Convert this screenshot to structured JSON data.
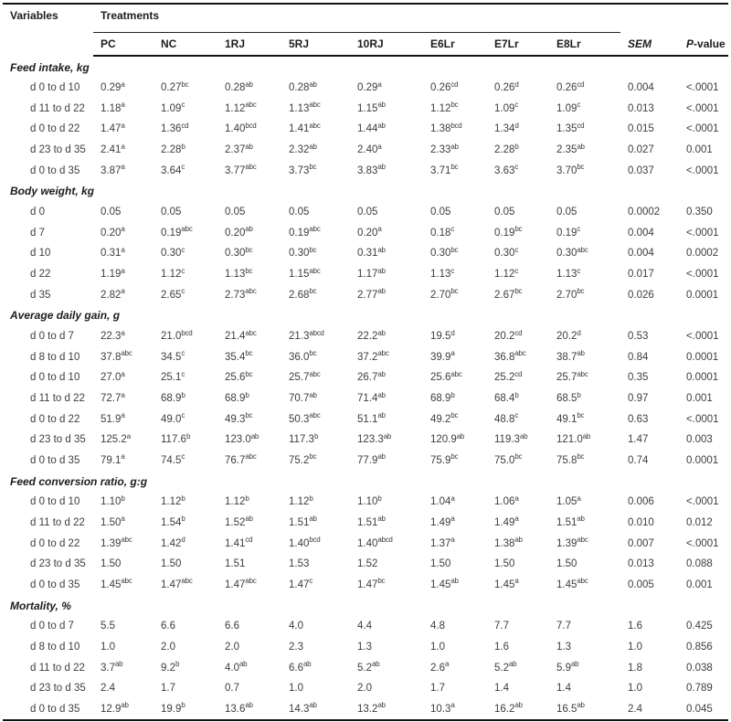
{
  "table": {
    "header": {
      "variables": "Variables",
      "treatments": "Treatments",
      "columns": [
        "PC",
        "NC",
        "1RJ",
        "5RJ",
        "10RJ",
        "E6Lr",
        "E7Lr",
        "E8Lr"
      ],
      "sem": "SEM",
      "pvalue_italic": "P",
      "pvalue_rest": "-value"
    },
    "sections": [
      {
        "title": "Feed intake, kg",
        "rows": [
          {
            "label": "d 0 to d 10",
            "values": [
              "0.29^a",
              "0.27^bc",
              "0.28^ab",
              "0.28^ab",
              "0.29^a",
              "0.26^cd",
              "0.26^d",
              "0.26^cd"
            ],
            "sem": "0.004",
            "p": "<.0001"
          },
          {
            "label": "d 11 to d 22",
            "values": [
              "1.18^a",
              "1.09^c",
              "1.12^abc",
              "1.13^abc",
              "1.15^ab",
              "1.12^bc",
              "1.09^c",
              "1.09^c"
            ],
            "sem": "0.013",
            "p": "<.0001"
          },
          {
            "label": "d 0 to d 22",
            "values": [
              "1.47^a",
              "1.36^cd",
              "1.40^bcd",
              "1.41^abc",
              "1.44^ab",
              "1.38^bcd",
              "1.34^d",
              "1.35^cd"
            ],
            "sem": "0.015",
            "p": "<.0001"
          },
          {
            "label": "d 23 to d 35",
            "values": [
              "2.41^a",
              "2.28^b",
              "2.37^ab",
              "2.32^ab",
              "2.40^a",
              "2.33^ab",
              "2.28^b",
              "2.35^ab"
            ],
            "sem": "0.027",
            "p": "0.001"
          },
          {
            "label": "d 0 to d 35",
            "values": [
              "3.87^a",
              "3.64^c",
              "3.77^abc",
              "3.73^bc",
              "3.83^ab",
              "3.71^bc",
              "3.63^c",
              "3.70^bc"
            ],
            "sem": "0.037",
            "p": "<.0001"
          }
        ]
      },
      {
        "title": "Body weight, kg",
        "rows": [
          {
            "label": "d 0",
            "values": [
              "0.05",
              "0.05",
              "0.05",
              "0.05",
              "0.05",
              "0.05",
              "0.05",
              "0.05"
            ],
            "sem": "0.0002",
            "p": "0.350"
          },
          {
            "label": "d 7",
            "values": [
              "0.20^a",
              "0.19^abc",
              "0.20^ab",
              "0.19^abc",
              "0.20^a",
              "0.18^c",
              "0.19^bc",
              "0.19^c"
            ],
            "sem": "0.004",
            "p": "<.0001"
          },
          {
            "label": "d 10",
            "values": [
              "0.31^a",
              "0.30^c",
              "0.30^bc",
              "0.30^bc",
              "0.31^ab",
              "0.30^bc",
              "0.30^c",
              "0.30^abc"
            ],
            "sem": "0.004",
            "p": "0.0002"
          },
          {
            "label": "d 22",
            "values": [
              "1.19^a",
              "1.12^c",
              "1.13^bc",
              "1.15^abc",
              "1.17^ab",
              "1.13^c",
              "1.12^c",
              "1.13^c"
            ],
            "sem": "0.017",
            "p": "<.0001"
          },
          {
            "label": "d 35",
            "values": [
              "2.82^a",
              "2.65^c",
              "2.73^abc",
              "2.68^bc",
              "2.77^ab",
              "2.70^bc",
              "2.67^bc",
              "2.70^bc"
            ],
            "sem": "0.026",
            "p": "0.0001"
          }
        ]
      },
      {
        "title": "Average daily gain, g",
        "rows": [
          {
            "label": "d 0 to d 7",
            "values": [
              "22.3^a",
              "21.0^bcd",
              "21.4^abc",
              "21.3^abcd",
              "22.2^ab",
              "19.5^d",
              "20.2^cd",
              "20.2^d"
            ],
            "sem": "0.53",
            "p": "<.0001"
          },
          {
            "label": "d 8 to d 10",
            "values": [
              "37.8^abc",
              "34.5^c",
              "35.4^bc",
              "36.0^bc",
              "37.2^abc",
              "39.9^a",
              "36.8^abc",
              "38.7^ab"
            ],
            "sem": "0.84",
            "p": "0.0001"
          },
          {
            "label": "d 0 to d 10",
            "values": [
              "27.0^a",
              "25.1^c",
              "25.6^bc",
              "25.7^abc",
              "26.7^ab",
              "25.6^abc",
              "25.2^cd",
              "25.7^abc"
            ],
            "sem": "0.35",
            "p": "0.0001"
          },
          {
            "label": "d 11 to d 22",
            "values": [
              "72.7^a",
              "68.9^b",
              "68.9^b",
              "70.7^ab",
              "71.4^ab",
              "68.9^b",
              "68.4^b",
              "68.5^b"
            ],
            "sem": "0.97",
            "p": "0.001"
          },
          {
            "label": "d 0 to d 22",
            "values": [
              "51.9^a",
              "49.0^c",
              "49.3^bc",
              "50.3^abc",
              "51.1^ab",
              "49.2^bc",
              "48.8^c",
              "49.1^bc"
            ],
            "sem": "0.63",
            "p": "<.0001"
          },
          {
            "label": "d 23 to d 35",
            "values": [
              "125.2^a",
              "117.6^b",
              "123.0^ab",
              "117.3^b",
              "123.3^ab",
              "120.9^ab",
              "119.3^ab",
              "121.0^ab"
            ],
            "sem": "1.47",
            "p": "0.003"
          },
          {
            "label": "d 0 to d 35",
            "values": [
              "79.1^a",
              "74.5^c",
              "76.7^abc",
              "75.2^bc",
              "77.9^ab",
              "75.9^bc",
              "75.0^bc",
              "75.8^bc"
            ],
            "sem": "0.74",
            "p": "0.0001"
          }
        ]
      },
      {
        "title": "Feed conversion ratio, g:g",
        "rows": [
          {
            "label": "d 0 to d 10",
            "values": [
              "1.10^b",
              "1.12^b",
              "1.12^b",
              "1.12^b",
              "1.10^b",
              "1.04^a",
              "1.06^a",
              "1.05^a"
            ],
            "sem": "0.006",
            "p": "<.0001"
          },
          {
            "label": "d 11 to d 22",
            "values": [
              "1.50^a",
              "1.54^b",
              "1.52^ab",
              "1.51^ab",
              "1.51^ab",
              "1.49^a",
              "1.49^a",
              "1.51^ab"
            ],
            "sem": "0.010",
            "p": "0.012"
          },
          {
            "label": "d 0 to d 22",
            "values": [
              "1.39^abc",
              "1.42^d",
              "1.41^cd",
              "1.40^bcd",
              "1.40^abcd",
              "1.37^a",
              "1.38^ab",
              "1.39^abc"
            ],
            "sem": "0.007",
            "p": "<.0001"
          },
          {
            "label": "d 23 to d 35",
            "values": [
              "1.50",
              "1.50",
              "1.51",
              "1.53",
              "1.52",
              "1.50",
              "1.50",
              "1.50"
            ],
            "sem": "0.013",
            "p": "0.088"
          },
          {
            "label": "d 0 to d 35",
            "values": [
              "1.45^abc",
              "1.47^abc",
              "1.47^abc",
              "1.47^c",
              "1.47^bc",
              "1.45^ab",
              "1.45^a",
              "1.45^abc"
            ],
            "sem": "0.005",
            "p": "0.001"
          }
        ]
      },
      {
        "title": "Mortality, %",
        "rows": [
          {
            "label": "d 0 to d 7",
            "values": [
              "5.5",
              "6.6",
              "6.6",
              "4.0",
              "4.4",
              "4.8",
              "7.7",
              "7.7"
            ],
            "sem": "1.6",
            "p": "0.425"
          },
          {
            "label": "d 8 to d 10",
            "values": [
              "1.0",
              "2.0",
              "2.0",
              "2.3",
              "1.3",
              "1.0",
              "1.6",
              "1.3"
            ],
            "sem": "1.0",
            "p": "0.856"
          },
          {
            "label": "d 11 to d 22",
            "values": [
              "3.7^ab",
              "9.2^b",
              "4.0^ab",
              "6.6^ab",
              "5.2^ab",
              "2.6^a",
              "5.2^ab",
              "5.9^ab"
            ],
            "sem": "1.8",
            "p": "0.038"
          },
          {
            "label": "d 23 to d 35",
            "values": [
              "2.4",
              "1.7",
              "0.7",
              "1.0",
              "2.0",
              "1.7",
              "1.4",
              "1.4"
            ],
            "sem": "1.0",
            "p": "0.789"
          },
          {
            "label": "d 0 to d 35",
            "values": [
              "12.9^ab",
              "19.9^b",
              "13.6^ab",
              "14.3^ab",
              "13.2^ab",
              "10.3^a",
              "16.2^ab",
              "16.5^ab"
            ],
            "sem": "2.4",
            "p": "0.045"
          }
        ]
      }
    ]
  }
}
